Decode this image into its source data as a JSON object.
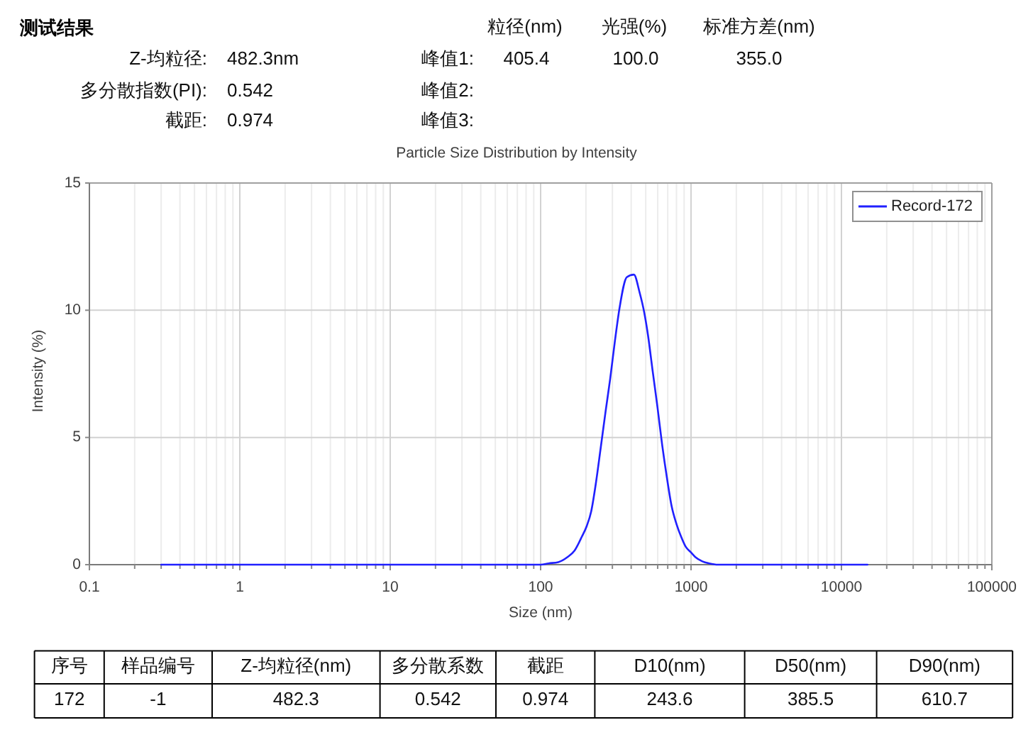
{
  "chart_data": [
    {
      "type": "other",
      "title": "测试结果",
      "annotations": [
        "Z-均粒径:",
        "482.3nm",
        "多分散指数(PI):",
        "0.542",
        "截距:",
        "0.974",
        "粒径(nm)",
        "光强(%)",
        "标准方差(nm)",
        "峰值1:",
        "405.4",
        "100.0",
        "355.0",
        "峰值2:",
        "峰值3:"
      ]
    },
    {
      "type": "line",
      "title": "Particle Size Distribution by Intensity",
      "xlabel": "Size (nm)",
      "ylabel": "Intensity (%)",
      "log": "x",
      "xlim": [
        0.1,
        100000
      ],
      "xticks": [
        0.1,
        {
          "value": 0.2,
          "label": null
        },
        {
          "value": 0.3,
          "label": null
        },
        {
          "value": 0.4,
          "label": null
        },
        {
          "value": 0.5,
          "label": null
        },
        {
          "value": 0.6,
          "label": null
        },
        {
          "value": 0.7,
          "label": null
        },
        {
          "value": 0.8,
          "label": null
        },
        {
          "value": 0.9,
          "label": null
        },
        1,
        {
          "value": 2,
          "label": null
        },
        {
          "value": 3,
          "label": null
        },
        {
          "value": 4,
          "label": null
        },
        {
          "value": 5,
          "label": null
        },
        {
          "value": 6,
          "label": null
        },
        {
          "value": 7,
          "label": null
        },
        {
          "value": 8,
          "label": null
        },
        {
          "value": 9,
          "label": null
        },
        10,
        {
          "value": 20,
          "label": null
        },
        {
          "value": 30,
          "label": null
        },
        {
          "value": 40,
          "label": null
        },
        {
          "value": 50,
          "label": null
        },
        {
          "value": 60,
          "label": null
        },
        {
          "value": 70,
          "label": null
        },
        {
          "value": 80,
          "label": null
        },
        {
          "value": 90,
          "label": null
        },
        100,
        {
          "value": 200,
          "label": null
        },
        {
          "value": 300,
          "label": null
        },
        {
          "value": 400,
          "label": null
        },
        {
          "value": 500,
          "label": null
        },
        {
          "value": 600,
          "label": null
        },
        {
          "value": 700,
          "label": null
        },
        {
          "value": 800,
          "label": null
        },
        {
          "value": 900,
          "label": null
        },
        1000,
        {
          "value": 2000,
          "label": null
        },
        {
          "value": 3000,
          "label": null
        },
        {
          "value": 4000,
          "label": null
        },
        {
          "value": 5000,
          "label": null
        },
        {
          "value": 6000,
          "label": null
        },
        {
          "value": 7000,
          "label": null
        },
        {
          "value": 8000,
          "label": null
        },
        {
          "value": 9000,
          "label": null
        },
        10000,
        {
          "value": 20000,
          "label": null
        },
        {
          "value": 30000,
          "label": null
        },
        {
          "value": 40000,
          "label": null
        },
        {
          "value": 50000,
          "label": null
        },
        {
          "value": 60000,
          "label": null
        },
        {
          "value": 70000,
          "label": null
        },
        {
          "value": 80000,
          "label": null
        },
        {
          "value": 90000,
          "label": null
        },
        100000
      ],
      "ylim": [
        0,
        15
      ],
      "yticks": [
        0,
        5,
        10,
        15
      ],
      "grid": true,
      "legend": "top right",
      "series": [
        {
          "name": "Record-172",
          "color": "#2020ff",
          "x": [
            0.3,
            1,
            10,
            100,
            113,
            131,
            151,
            168,
            188,
            202,
            217,
            233,
            251,
            270,
            290,
            312,
            335,
            374,
            417,
            455,
            489,
            518,
            556,
            598,
            643,
            692,
            743,
            800,
            859,
            923,
            993,
            1067,
            1189,
            1320,
            1510,
            10000,
            14900
          ],
          "values": [
            0,
            0,
            0,
            0,
            0.05,
            0.1,
            0.3,
            0.55,
            1.1,
            1.5,
            2.1,
            3.2,
            4.6,
            6.0,
            7.3,
            8.8,
            10.1,
            11.3,
            11.4,
            10.7,
            9.9,
            9.0,
            7.6,
            6.2,
            4.7,
            3.4,
            2.3,
            1.6,
            1.1,
            0.7,
            0.5,
            0.3,
            0.13,
            0.05,
            0,
            0,
            0
          ]
        }
      ]
    },
    {
      "type": "other",
      "categories": [
        "序号",
        "样品编号",
        "Z-均粒径(nm)",
        "多分散系数",
        "截距",
        "D10(nm)",
        "D50(nm)",
        "D90(nm)"
      ],
      "values": [
        172,
        -1,
        482.3,
        0.542,
        0.974,
        243.6,
        385.5,
        610.7
      ],
      "data_labels": true
    }
  ]
}
